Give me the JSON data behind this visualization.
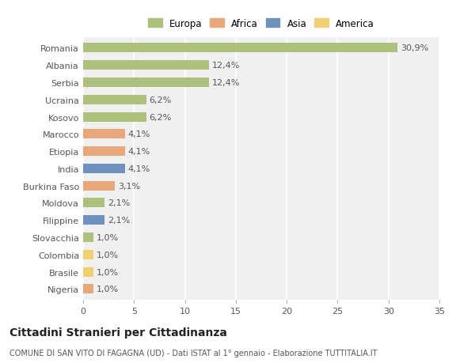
{
  "countries": [
    "Romania",
    "Albania",
    "Serbia",
    "Ucraina",
    "Kosovo",
    "Marocco",
    "Etiopia",
    "India",
    "Burkina Faso",
    "Moldova",
    "Filippine",
    "Slovacchia",
    "Colombia",
    "Brasile",
    "Nigeria"
  ],
  "values": [
    30.9,
    12.4,
    12.4,
    6.2,
    6.2,
    4.1,
    4.1,
    4.1,
    3.1,
    2.1,
    2.1,
    1.0,
    1.0,
    1.0,
    1.0
  ],
  "labels": [
    "30,9%",
    "12,4%",
    "12,4%",
    "6,2%",
    "6,2%",
    "4,1%",
    "4,1%",
    "4,1%",
    "3,1%",
    "2,1%",
    "2,1%",
    "1,0%",
    "1,0%",
    "1,0%",
    "1,0%"
  ],
  "continents": [
    "Europa",
    "Europa",
    "Europa",
    "Europa",
    "Europa",
    "Africa",
    "Africa",
    "Asia",
    "Africa",
    "Europa",
    "Asia",
    "Europa",
    "America",
    "America",
    "Africa"
  ],
  "continent_colors": {
    "Europa": "#adc17d",
    "Africa": "#e8a87c",
    "Asia": "#7090be",
    "America": "#f0d070"
  },
  "legend_order": [
    "Europa",
    "Africa",
    "Asia",
    "America"
  ],
  "title": "Cittadini Stranieri per Cittadinanza",
  "subtitle": "COMUNE DI SAN VITO DI FAGAGNA (UD) - Dati ISTAT al 1° gennaio - Elaborazione TUTTITALIA.IT",
  "xlim": [
    0,
    35
  ],
  "xticks": [
    0,
    5,
    10,
    15,
    20,
    25,
    30,
    35
  ],
  "bg_color": "#f0f0f0",
  "bar_height": 0.55,
  "grid_color": "#ffffff",
  "label_fontsize": 8,
  "tick_fontsize": 8,
  "title_fontsize": 10,
  "subtitle_fontsize": 7
}
